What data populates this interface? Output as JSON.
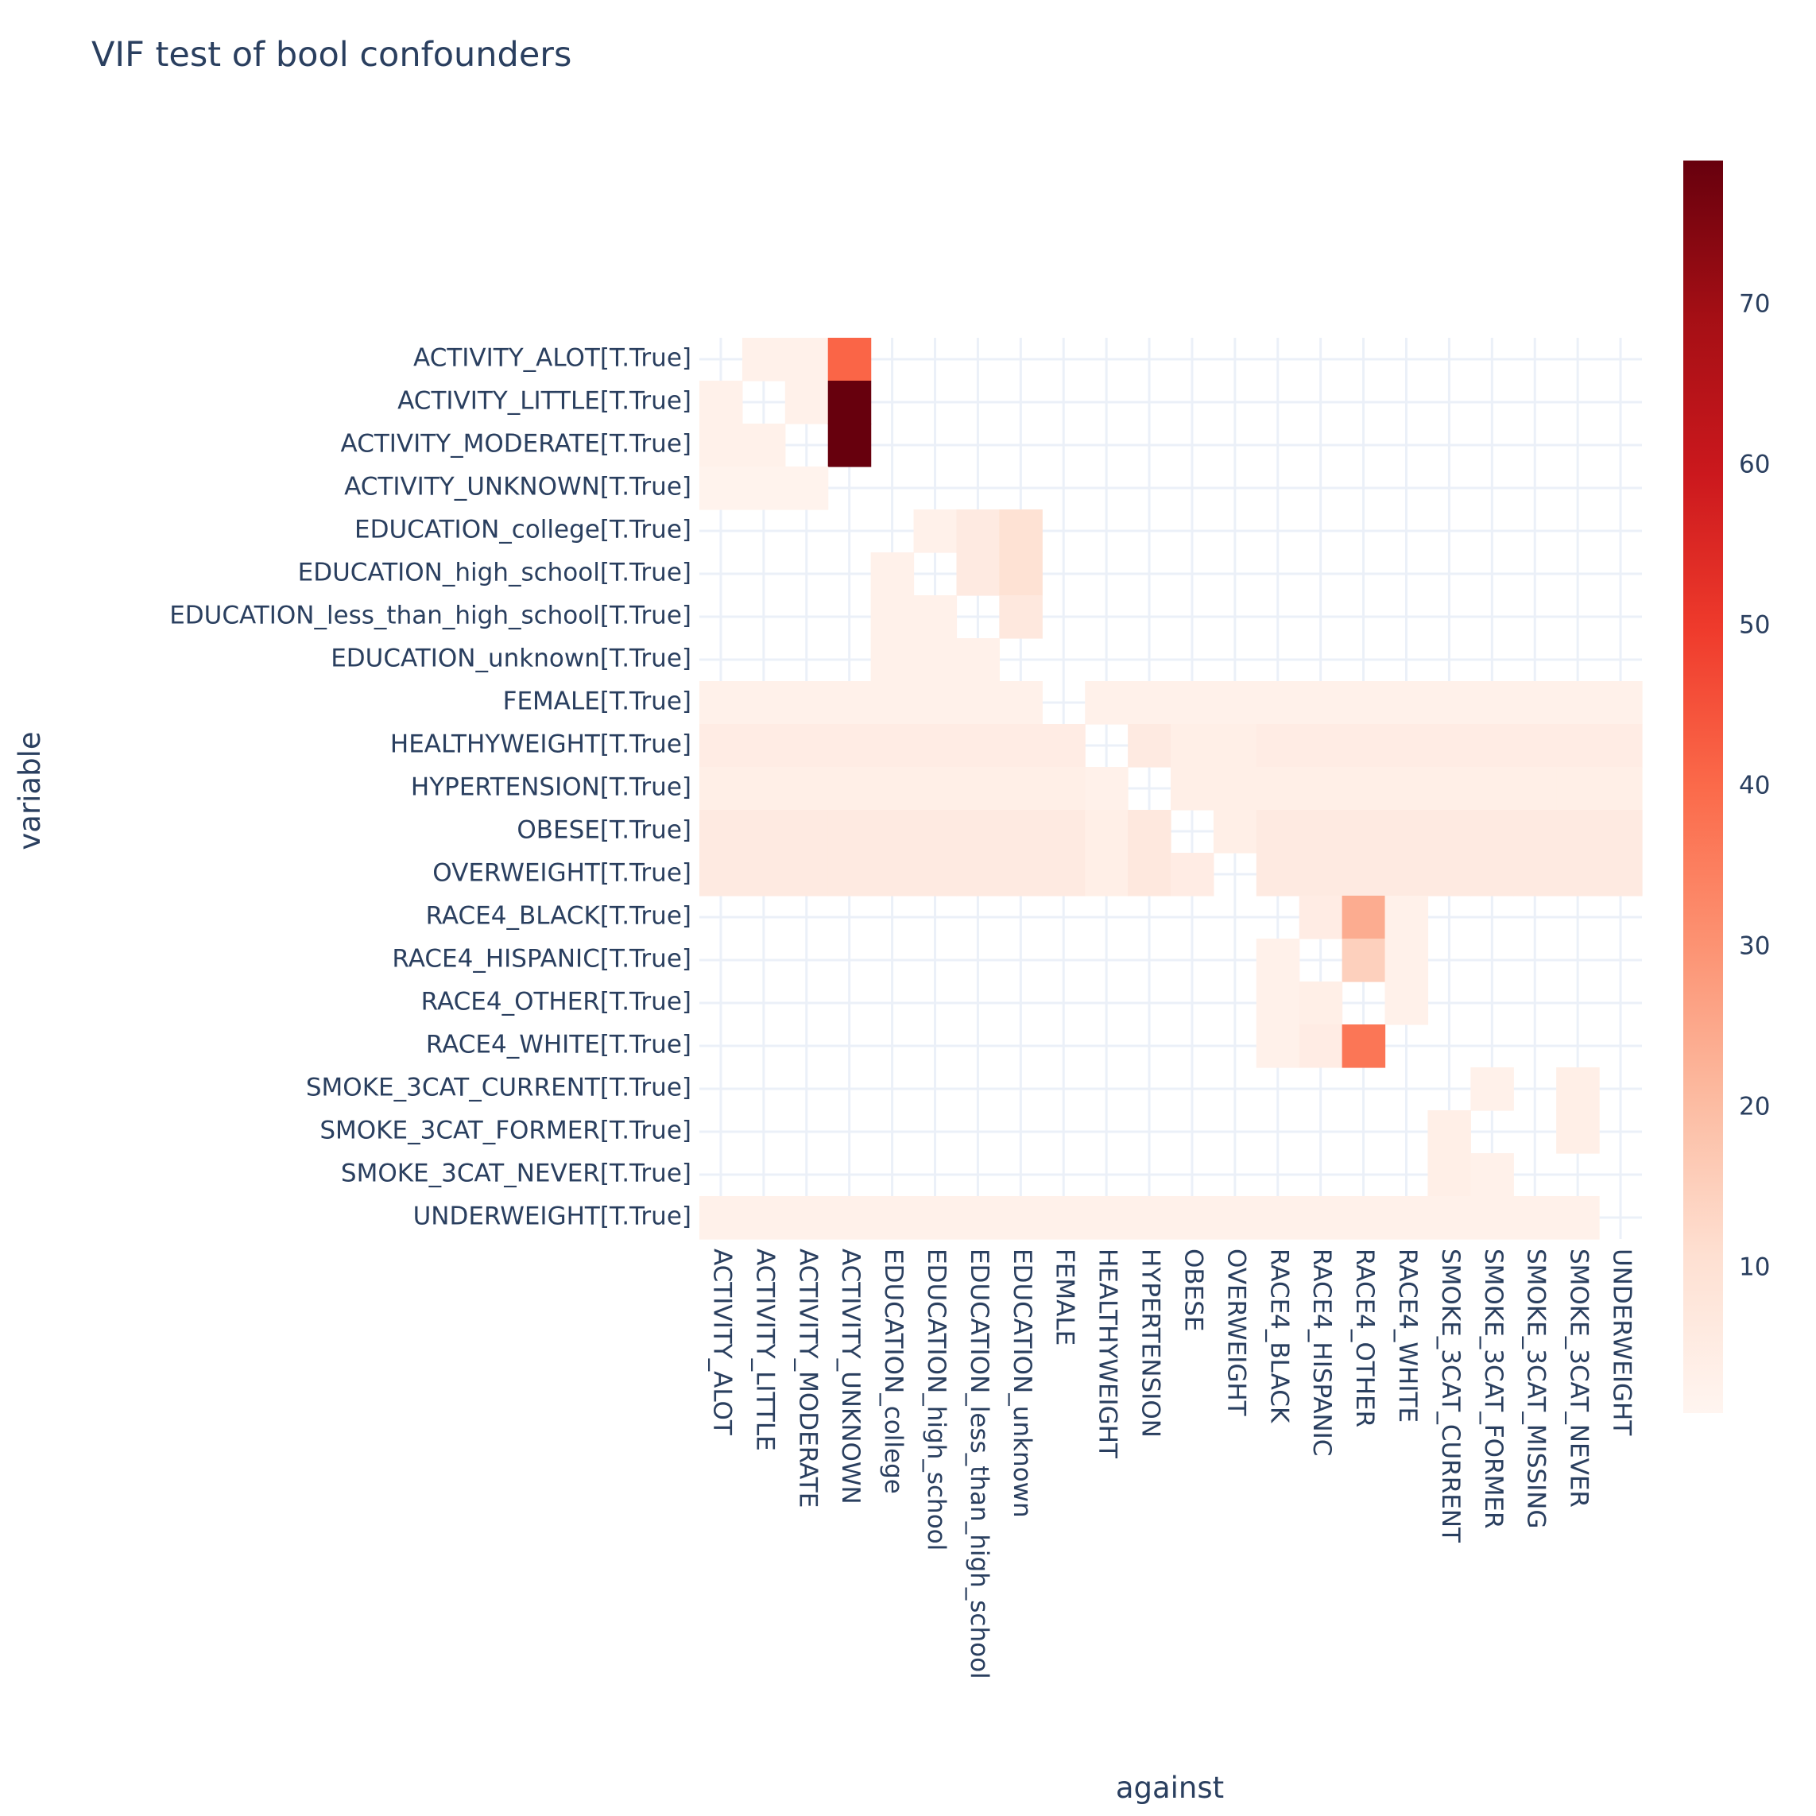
{
  "chart_data": {
    "type": "heatmap",
    "title": "VIF test of bool confounders",
    "xlabel": "against",
    "ylabel": "variable",
    "x_categories": [
      "ACTIVITY_ALOT",
      "ACTIVITY_LITTLE",
      "ACTIVITY_MODERATE",
      "ACTIVITY_UNKNOWN",
      "EDUCATION_college",
      "EDUCATION_high_school",
      "EDUCATION_less_than_high_school",
      "EDUCATION_unknown",
      "FEMALE",
      "HEALTHYWEIGHT",
      "HYPERTENSION",
      "OBESE",
      "OVERWEIGHT",
      "RACE4_BLACK",
      "RACE4_HISPANIC",
      "RACE4_OTHER",
      "RACE4_WHITE",
      "SMOKE_3CAT_CURRENT",
      "SMOKE_3CAT_FORMER",
      "SMOKE_3CAT_MISSING",
      "SMOKE_3CAT_NEVER",
      "UNDERWEIGHT"
    ],
    "y_categories": [
      "ACTIVITY_ALOT[T.True]",
      "ACTIVITY_LITTLE[T.True]",
      "ACTIVITY_MODERATE[T.True]",
      "ACTIVITY_UNKNOWN[T.True]",
      "EDUCATION_college[T.True]",
      "EDUCATION_high_school[T.True]",
      "EDUCATION_less_than_high_school[T.True]",
      "EDUCATION_unknown[T.True]",
      "FEMALE[T.True]",
      "HEALTHYWEIGHT[T.True]",
      "HYPERTENSION[T.True]",
      "OBESE[T.True]",
      "OVERWEIGHT[T.True]",
      "RACE4_BLACK[T.True]",
      "RACE4_HISPANIC[T.True]",
      "RACE4_OTHER[T.True]",
      "RACE4_WHITE[T.True]",
      "SMOKE_3CAT_CURRENT[T.True]",
      "SMOKE_3CAT_FORMER[T.True]",
      "SMOKE_3CAT_NEVER[T.True]",
      "UNDERWEIGHT[T.True]"
    ],
    "z": [
      [
        null,
        3,
        3,
        41,
        null,
        null,
        null,
        null,
        null,
        null,
        null,
        null,
        null,
        null,
        null,
        null,
        null,
        null,
        null,
        null,
        null,
        null
      ],
      [
        3,
        null,
        3,
        79,
        null,
        null,
        null,
        null,
        null,
        null,
        null,
        null,
        null,
        null,
        null,
        null,
        null,
        null,
        null,
        null,
        null,
        null
      ],
      [
        3,
        3,
        null,
        79,
        null,
        null,
        null,
        null,
        null,
        null,
        null,
        null,
        null,
        null,
        null,
        null,
        null,
        null,
        null,
        null,
        null,
        null
      ],
      [
        2,
        2,
        2,
        null,
        null,
        null,
        null,
        null,
        null,
        null,
        null,
        null,
        null,
        null,
        null,
        null,
        null,
        null,
        null,
        null,
        null,
        null
      ],
      [
        null,
        null,
        null,
        null,
        null,
        3,
        6,
        10,
        null,
        null,
        null,
        null,
        null,
        null,
        null,
        null,
        null,
        null,
        null,
        null,
        null,
        null
      ],
      [
        null,
        null,
        null,
        null,
        3,
        null,
        6,
        10,
        null,
        null,
        null,
        null,
        null,
        null,
        null,
        null,
        null,
        null,
        null,
        null,
        null,
        null
      ],
      [
        null,
        null,
        null,
        null,
        3,
        3,
        null,
        7,
        null,
        null,
        null,
        null,
        null,
        null,
        null,
        null,
        null,
        null,
        null,
        null,
        null,
        null
      ],
      [
        null,
        null,
        null,
        null,
        3,
        3,
        3,
        null,
        null,
        null,
        null,
        null,
        null,
        null,
        null,
        null,
        null,
        null,
        null,
        null,
        null,
        null
      ],
      [
        3,
        3,
        3,
        3,
        3,
        3,
        3,
        3,
        null,
        3,
        3,
        3,
        3,
        3,
        3,
        3,
        3,
        3,
        3,
        3,
        3,
        3
      ],
      [
        5,
        5,
        5,
        5,
        5,
        5,
        5,
        5,
        5,
        null,
        6,
        4,
        4,
        5,
        5,
        5,
        5,
        5,
        5,
        5,
        5,
        5
      ],
      [
        4,
        4,
        4,
        4,
        4,
        4,
        4,
        4,
        4,
        3,
        null,
        4,
        4,
        4,
        4,
        4,
        4,
        4,
        4,
        4,
        4,
        4
      ],
      [
        6,
        6,
        6,
        6,
        6,
        6,
        6,
        6,
        6,
        4,
        7,
        null,
        4,
        6,
        6,
        6,
        6,
        6,
        6,
        6,
        6,
        6
      ],
      [
        6,
        6,
        6,
        6,
        6,
        6,
        6,
        6,
        6,
        4,
        7,
        5,
        null,
        6,
        6,
        6,
        6,
        6,
        6,
        6,
        6,
        6
      ],
      [
        null,
        null,
        null,
        null,
        null,
        null,
        null,
        null,
        null,
        null,
        null,
        null,
        null,
        null,
        5,
        24,
        3,
        null,
        null,
        null,
        null,
        null
      ],
      [
        null,
        null,
        null,
        null,
        null,
        null,
        null,
        null,
        null,
        null,
        null,
        null,
        null,
        3,
        null,
        15,
        3,
        null,
        null,
        null,
        null,
        null
      ],
      [
        null,
        null,
        null,
        null,
        null,
        null,
        null,
        null,
        null,
        null,
        null,
        null,
        null,
        3,
        4,
        null,
        3,
        null,
        null,
        null,
        null,
        null
      ],
      [
        null,
        null,
        null,
        null,
        null,
        null,
        null,
        null,
        null,
        null,
        null,
        null,
        null,
        3,
        5,
        37,
        null,
        null,
        null,
        null,
        null,
        null
      ],
      [
        null,
        null,
        null,
        null,
        null,
        null,
        null,
        null,
        null,
        null,
        null,
        null,
        null,
        null,
        null,
        null,
        null,
        null,
        3,
        null,
        4,
        null
      ],
      [
        null,
        null,
        null,
        null,
        null,
        null,
        null,
        null,
        null,
        null,
        null,
        null,
        null,
        null,
        null,
        null,
        null,
        4,
        null,
        null,
        4,
        null
      ],
      [
        null,
        null,
        null,
        null,
        null,
        null,
        null,
        null,
        null,
        null,
        null,
        null,
        null,
        null,
        null,
        null,
        null,
        4,
        3,
        null,
        null,
        null
      ],
      [
        3,
        3,
        3,
        3,
        3,
        3,
        3,
        3,
        3,
        3,
        3,
        3,
        3,
        3,
        3,
        3,
        3,
        3,
        3,
        3,
        3,
        null
      ]
    ],
    "zmin": 1,
    "zmax": 79,
    "colorscale": "Reds",
    "colorbar_ticks": [
      10,
      20,
      30,
      40,
      50,
      60,
      70
    ],
    "grid": true,
    "colors": {
      "text": "#2a3f5f",
      "grid": "#ebf0f8",
      "scale": [
        "#fff5f0",
        "#fee0d2",
        "#fcbba1",
        "#fc9272",
        "#fb6a4a",
        "#ef3b2c",
        "#cb181d",
        "#a50f15",
        "#67000d"
      ]
    }
  }
}
